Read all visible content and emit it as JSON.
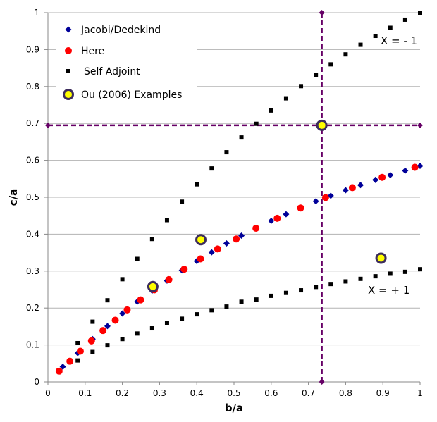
{
  "chart_data": {
    "type": "scatter",
    "title": "",
    "xlabel": "b/a",
    "ylabel": "c/a",
    "xlim": [
      0,
      1
    ],
    "ylim": [
      0,
      1
    ],
    "xticks": [
      "0",
      "0.1",
      "0.2",
      "0.3",
      "0.4",
      "0.5",
      "0.6",
      "0.7",
      "0.8",
      "0.9",
      "1"
    ],
    "yticks": [
      "0",
      "0.1",
      "0.2",
      "0.3",
      "0.4",
      "0.5",
      "0.6",
      "0.7",
      "0.8",
      "0.9",
      "1"
    ],
    "grid": "horizontal",
    "legend_placement": "top-left",
    "series": [
      {
        "name": "Jacobi/Dedekind",
        "marker": "diamond",
        "color": "#000099",
        "x": [
          0.04,
          0.08,
          0.12,
          0.16,
          0.2,
          0.24,
          0.28,
          0.32,
          0.36,
          0.4,
          0.44,
          0.48,
          0.52,
          0.6,
          0.64,
          0.72,
          0.76,
          0.8,
          0.84,
          0.88,
          0.92,
          0.96,
          1.0
        ],
        "y": [
          0.041,
          0.078,
          0.116,
          0.151,
          0.185,
          0.217,
          0.247,
          0.274,
          0.302,
          0.327,
          0.351,
          0.375,
          0.396,
          0.436,
          0.454,
          0.489,
          0.504,
          0.519,
          0.533,
          0.547,
          0.56,
          0.572,
          0.585
        ]
      },
      {
        "name": "Here",
        "marker": "circle",
        "color": "#ff0000",
        "x": [
          0.03,
          0.059,
          0.087,
          0.117,
          0.148,
          0.181,
          0.213,
          0.249,
          0.286,
          0.325,
          0.366,
          0.41,
          0.456,
          0.506,
          0.559,
          0.616,
          0.679,
          0.746,
          0.818,
          0.898,
          0.986
        ],
        "y": [
          0.029,
          0.056,
          0.083,
          0.111,
          0.139,
          0.167,
          0.195,
          0.222,
          0.249,
          0.277,
          0.305,
          0.333,
          0.36,
          0.387,
          0.416,
          0.443,
          0.471,
          0.499,
          0.526,
          0.554,
          0.581
        ]
      },
      {
        "name": "Self Adjoint",
        "marker": "square",
        "color": "#000000",
        "x": [
          0.08,
          0.12,
          0.16,
          0.2,
          0.24,
          0.28,
          0.32,
          0.36,
          0.4,
          0.44,
          0.48,
          0.52,
          0.56,
          0.6,
          0.64,
          0.68,
          0.72,
          0.76,
          0.8,
          0.84,
          0.88,
          0.92,
          0.96,
          1.0,
          0.08,
          0.12,
          0.16,
          0.2,
          0.24,
          0.28,
          0.32,
          0.36,
          0.4,
          0.44,
          0.48,
          0.52,
          0.56,
          0.6,
          0.64,
          0.68,
          0.72,
          0.76,
          0.8,
          0.84,
          0.88,
          0.92,
          0.96,
          1.0
        ],
        "y": [
          0.105,
          0.163,
          0.221,
          0.278,
          0.333,
          0.387,
          0.438,
          0.488,
          0.535,
          0.578,
          0.622,
          0.662,
          0.699,
          0.735,
          0.768,
          0.801,
          0.831,
          0.86,
          0.887,
          0.913,
          0.937,
          0.959,
          0.981,
          1.0,
          0.058,
          0.081,
          0.099,
          0.116,
          0.131,
          0.145,
          0.159,
          0.171,
          0.183,
          0.194,
          0.204,
          0.217,
          0.223,
          0.233,
          0.241,
          0.248,
          0.257,
          0.265,
          0.272,
          0.279,
          0.286,
          0.293,
          0.298,
          0.305
        ]
      },
      {
        "name": "Ou (2006) Examples",
        "marker": "ringed-circle",
        "color": "#ffff00",
        "edge_color": "#3d2d5c",
        "x": [
          0.282,
          0.411,
          0.736,
          0.895
        ],
        "y": [
          0.258,
          0.385,
          0.695,
          0.335
        ]
      }
    ],
    "reference_lines": [
      {
        "orientation": "vertical",
        "value": 0.736,
        "style": "dashed",
        "color": "#660066"
      },
      {
        "orientation": "horizontal",
        "value": 0.695,
        "style": "dashed",
        "color": "#660066"
      }
    ],
    "annotations": [
      {
        "text": "X = - 1",
        "x": 0.9,
        "y": 0.92
      },
      {
        "text": "X = + 1",
        "x": 0.87,
        "y": 0.245
      }
    ]
  }
}
